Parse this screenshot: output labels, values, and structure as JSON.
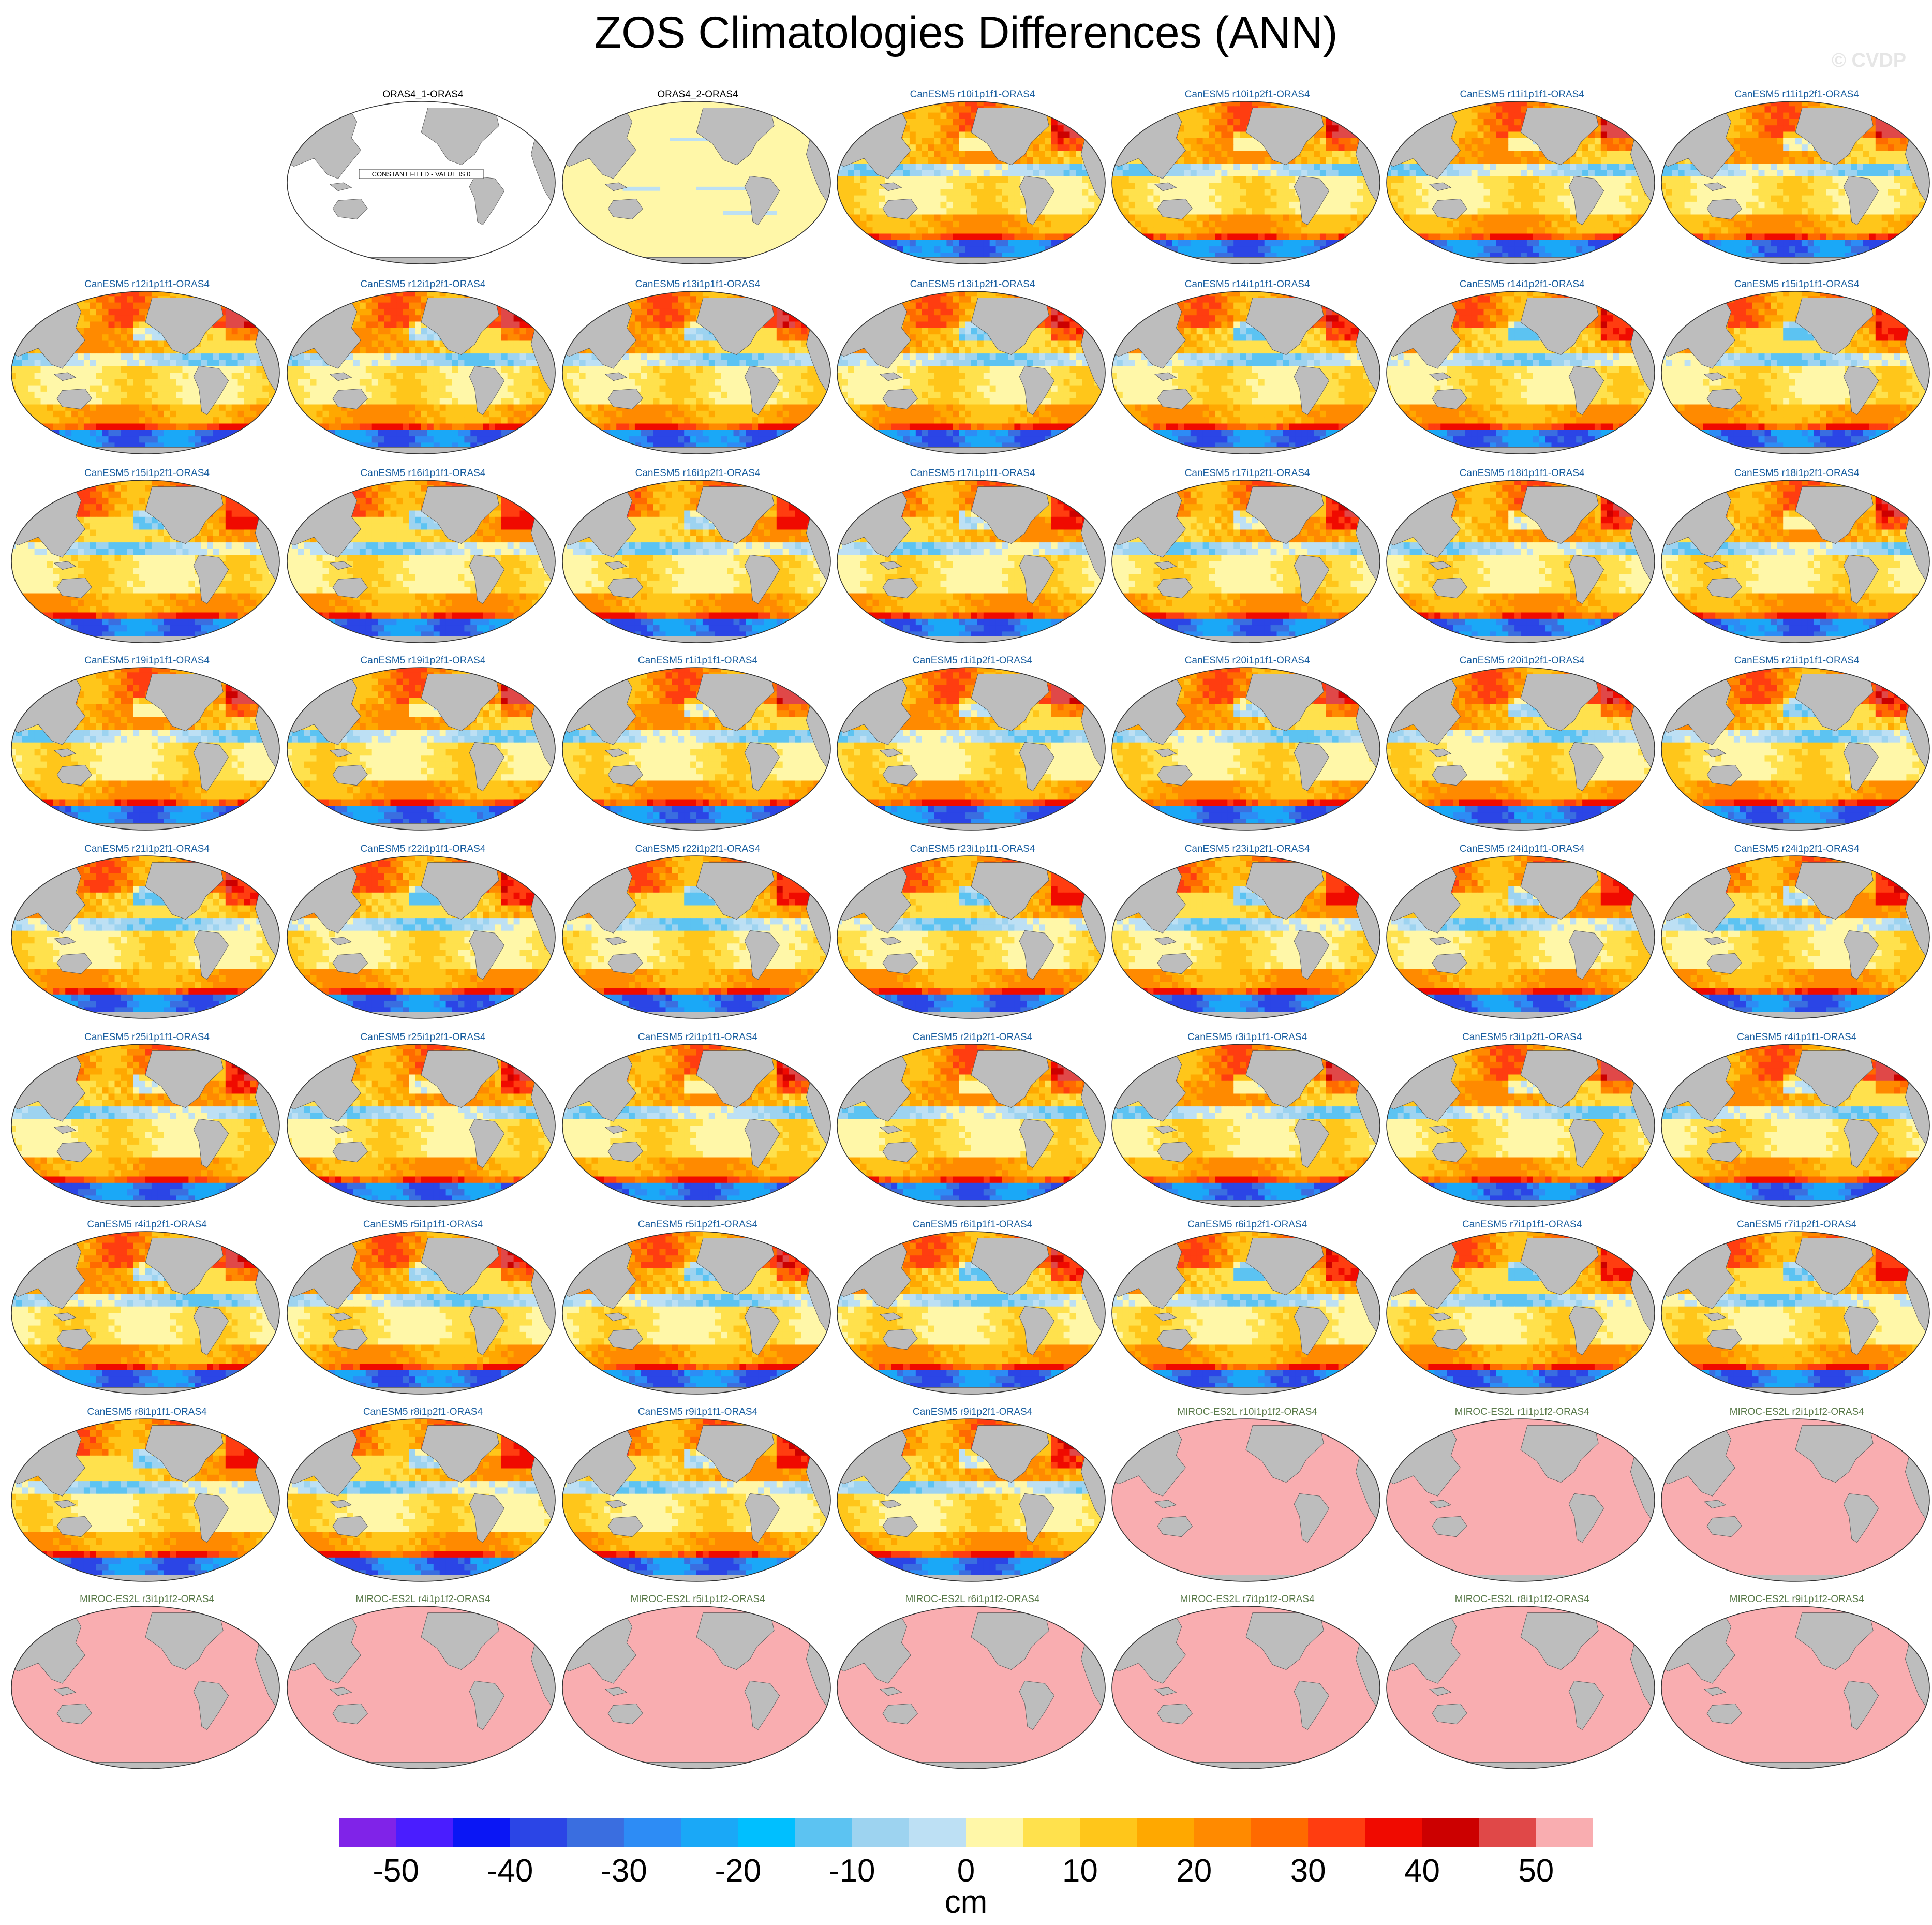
{
  "title": "ZOS Climatologies Differences (ANN)",
  "copyright": "© CVDP",
  "colors": {
    "obs_title": "#000000",
    "canesm_title": "#1a5fa0",
    "miroc_title": "#5a7a4a",
    "land": "#bdbdbd",
    "miroc_ocean": "#f9adb0",
    "obs2_ocean": "#fff7a8"
  },
  "colorbar": {
    "colors": [
      "#8023e8",
      "#4a1dff",
      "#0a16f5",
      "#2b45e6",
      "#3a6ee0",
      "#2d8cf5",
      "#1aa8f7",
      "#00bfff",
      "#5cc3f2",
      "#9dd3f0",
      "#bde0f4",
      "#fff7a8",
      "#ffe14d",
      "#ffc61a",
      "#ffa800",
      "#ff8a00",
      "#ff6a00",
      "#ff3d10",
      "#f00a00",
      "#cc0000",
      "#e04848",
      "#f9adb0"
    ],
    "ticks": [
      -50,
      -40,
      -30,
      -20,
      -10,
      0,
      10,
      20,
      30,
      40,
      50
    ],
    "units": "cm"
  },
  "chart_data": {
    "type": "heatmap",
    "title": "ZOS Climatologies Differences (ANN)",
    "units": "cm",
    "value_range": [
      -55,
      55
    ],
    "contour_levels": [
      -50,
      -45,
      -40,
      -35,
      -30,
      -25,
      -20,
      -15,
      -10,
      -5,
      0,
      5,
      10,
      15,
      20,
      25,
      30,
      35,
      40,
      45,
      50
    ],
    "panels": [
      {
        "title": "ORAS4_1-ORAS4",
        "kind": "constant",
        "note": "CONSTANT FIELD - VALUE IS 0"
      },
      {
        "title": "ORAS4_2-ORAS4",
        "kind": "obs"
      },
      {
        "title": "CanESM5 r10i1p1f1-ORAS4",
        "kind": "canesm"
      },
      {
        "title": "CanESM5 r10i1p2f1-ORAS4",
        "kind": "canesm"
      },
      {
        "title": "CanESM5 r11i1p1f1-ORAS4",
        "kind": "canesm"
      },
      {
        "title": "CanESM5 r11i1p2f1-ORAS4",
        "kind": "canesm"
      },
      {
        "title": "CanESM5 r12i1p1f1-ORAS4",
        "kind": "canesm"
      },
      {
        "title": "CanESM5 r12i1p2f1-ORAS4",
        "kind": "canesm"
      },
      {
        "title": "CanESM5 r13i1p1f1-ORAS4",
        "kind": "canesm"
      },
      {
        "title": "CanESM5 r13i1p2f1-ORAS4",
        "kind": "canesm"
      },
      {
        "title": "CanESM5 r14i1p1f1-ORAS4",
        "kind": "canesm"
      },
      {
        "title": "CanESM5 r14i1p2f1-ORAS4",
        "kind": "canesm"
      },
      {
        "title": "CanESM5 r15i1p1f1-ORAS4",
        "kind": "canesm"
      },
      {
        "title": "CanESM5 r15i1p2f1-ORAS4",
        "kind": "canesm"
      },
      {
        "title": "CanESM5 r16i1p1f1-ORAS4",
        "kind": "canesm"
      },
      {
        "title": "CanESM5 r16i1p2f1-ORAS4",
        "kind": "canesm"
      },
      {
        "title": "CanESM5 r17i1p1f1-ORAS4",
        "kind": "canesm"
      },
      {
        "title": "CanESM5 r17i1p2f1-ORAS4",
        "kind": "canesm"
      },
      {
        "title": "CanESM5 r18i1p1f1-ORAS4",
        "kind": "canesm"
      },
      {
        "title": "CanESM5 r18i1p2f1-ORAS4",
        "kind": "canesm"
      },
      {
        "title": "CanESM5 r19i1p1f1-ORAS4",
        "kind": "canesm"
      },
      {
        "title": "CanESM5 r19i1p2f1-ORAS4",
        "kind": "canesm"
      },
      {
        "title": "CanESM5 r1i1p1f1-ORAS4",
        "kind": "canesm"
      },
      {
        "title": "CanESM5 r1i1p2f1-ORAS4",
        "kind": "canesm"
      },
      {
        "title": "CanESM5 r20i1p1f1-ORAS4",
        "kind": "canesm"
      },
      {
        "title": "CanESM5 r20i1p2f1-ORAS4",
        "kind": "canesm"
      },
      {
        "title": "CanESM5 r21i1p1f1-ORAS4",
        "kind": "canesm"
      },
      {
        "title": "CanESM5 r21i1p2f1-ORAS4",
        "kind": "canesm"
      },
      {
        "title": "CanESM5 r22i1p1f1-ORAS4",
        "kind": "canesm"
      },
      {
        "title": "CanESM5 r22i1p2f1-ORAS4",
        "kind": "canesm"
      },
      {
        "title": "CanESM5 r23i1p1f1-ORAS4",
        "kind": "canesm"
      },
      {
        "title": "CanESM5 r23i1p2f1-ORAS4",
        "kind": "canesm"
      },
      {
        "title": "CanESM5 r24i1p1f1-ORAS4",
        "kind": "canesm"
      },
      {
        "title": "CanESM5 r24i1p2f1-ORAS4",
        "kind": "canesm"
      },
      {
        "title": "CanESM5 r25i1p1f1-ORAS4",
        "kind": "canesm"
      },
      {
        "title": "CanESM5 r25i1p2f1-ORAS4",
        "kind": "canesm"
      },
      {
        "title": "CanESM5 r2i1p1f1-ORAS4",
        "kind": "canesm"
      },
      {
        "title": "CanESM5 r2i1p2f1-ORAS4",
        "kind": "canesm"
      },
      {
        "title": "CanESM5 r3i1p1f1-ORAS4",
        "kind": "canesm"
      },
      {
        "title": "CanESM5 r3i1p2f1-ORAS4",
        "kind": "canesm"
      },
      {
        "title": "CanESM5 r4i1p1f1-ORAS4",
        "kind": "canesm"
      },
      {
        "title": "CanESM5 r4i1p2f1-ORAS4",
        "kind": "canesm"
      },
      {
        "title": "CanESM5 r5i1p1f1-ORAS4",
        "kind": "canesm"
      },
      {
        "title": "CanESM5 r5i1p2f1-ORAS4",
        "kind": "canesm"
      },
      {
        "title": "CanESM5 r6i1p1f1-ORAS4",
        "kind": "canesm"
      },
      {
        "title": "CanESM5 r6i1p2f1-ORAS4",
        "kind": "canesm"
      },
      {
        "title": "CanESM5 r7i1p1f1-ORAS4",
        "kind": "canesm"
      },
      {
        "title": "CanESM5 r7i1p2f1-ORAS4",
        "kind": "canesm"
      },
      {
        "title": "CanESM5 r8i1p1f1-ORAS4",
        "kind": "canesm"
      },
      {
        "title": "CanESM5 r8i1p2f1-ORAS4",
        "kind": "canesm"
      },
      {
        "title": "CanESM5 r9i1p1f1-ORAS4",
        "kind": "canesm"
      },
      {
        "title": "CanESM5 r9i1p2f1-ORAS4",
        "kind": "canesm"
      },
      {
        "title": "MIROC-ES2L r10i1p1f2-ORAS4",
        "kind": "miroc"
      },
      {
        "title": "MIROC-ES2L r1i1p1f2-ORAS4",
        "kind": "miroc"
      },
      {
        "title": "MIROC-ES2L r2i1p1f2-ORAS4",
        "kind": "miroc"
      },
      {
        "title": "MIROC-ES2L r3i1p1f2-ORAS4",
        "kind": "miroc"
      },
      {
        "title": "MIROC-ES2L r4i1p1f2-ORAS4",
        "kind": "miroc"
      },
      {
        "title": "MIROC-ES2L r5i1p1f2-ORAS4",
        "kind": "miroc"
      },
      {
        "title": "MIROC-ES2L r6i1p1f2-ORAS4",
        "kind": "miroc"
      },
      {
        "title": "MIROC-ES2L r7i1p1f2-ORAS4",
        "kind": "miroc"
      },
      {
        "title": "MIROC-ES2L r8i1p1f2-ORAS4",
        "kind": "miroc"
      },
      {
        "title": "MIROC-ES2L r9i1p1f2-ORAS4",
        "kind": "miroc"
      }
    ]
  }
}
